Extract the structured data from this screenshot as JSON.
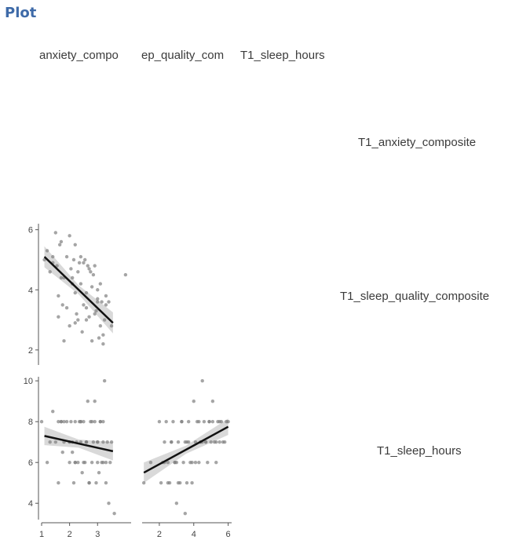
{
  "header": {
    "title": "Plot"
  },
  "matrix": {
    "column_labels": [
      "T1_anxiety_composite",
      "T1_sleep_quality_composite",
      "T1_sleep_hours"
    ],
    "column_labels_visible": [
      "anxiety_compo",
      "ep_quality_com",
      "T1_sleep_hours"
    ],
    "row_labels": [
      "T1_anxiety_composite",
      "T1_sleep_quality_composite",
      "T1_sleep_hours"
    ]
  },
  "colors": {
    "point": "#7f7f7f",
    "line": "#111111",
    "band": "#d0d0d0",
    "axis": "#555555"
  },
  "chart_data": [
    {
      "type": "scatter",
      "panel": "T1_sleep_quality_composite vs T1_anxiety_composite",
      "xlabel": "",
      "ylabel": "",
      "xlim": [
        1,
        4.2
      ],
      "ylim": [
        1.5,
        6.2
      ],
      "y_ticks": [
        2,
        4,
        6
      ],
      "x": [
        1.1,
        1.2,
        1.3,
        1.4,
        1.5,
        1.55,
        1.6,
        1.65,
        1.7,
        1.75,
        1.8,
        1.9,
        2.0,
        2.05,
        2.1,
        2.15,
        2.2,
        2.25,
        2.3,
        2.35,
        2.4,
        2.45,
        2.5,
        2.55,
        2.6,
        2.65,
        2.7,
        2.75,
        2.8,
        2.85,
        2.9,
        2.95,
        3.0,
        3.05,
        3.1,
        3.15,
        3.2,
        3.25,
        3.3,
        3.4,
        3.5,
        1.6,
        1.8,
        2.0,
        2.2,
        2.4,
        2.6,
        2.8,
        3.0,
        3.2,
        1.7,
        1.9,
        2.1,
        2.3,
        2.5,
        2.7,
        2.9,
        3.1,
        3.3,
        4.0,
        1.4,
        2.2,
        2.6,
        3.0
      ],
      "y": [
        5.0,
        5.3,
        4.6,
        5.1,
        5.9,
        4.8,
        3.8,
        5.5,
        5.6,
        3.5,
        4.4,
        5.1,
        5.8,
        4.7,
        4.2,
        5.0,
        5.5,
        3.2,
        4.6,
        4.9,
        5.1,
        2.6,
        4.9,
        5.0,
        3.4,
        4.8,
        3.1,
        4.6,
        2.3,
        4.5,
        4.8,
        3.3,
        3.7,
        2.4,
        4.2,
        3.6,
        2.2,
        3.0,
        3.8,
        3.6,
        2.8,
        3.1,
        2.3,
        2.8,
        3.9,
        4.2,
        3.0,
        4.1,
        3.6,
        2.5,
        4.4,
        3.4,
        4.4,
        3.0,
        3.5,
        4.7,
        3.2,
        2.8,
        3.5,
        4.5,
        4.9,
        2.9,
        3.9,
        4.0
      ],
      "fit": {
        "x": [
          1.1,
          3.55
        ],
        "y": [
          5.1,
          2.9
        ]
      },
      "band_halfwidth": [
        0.35,
        0.15,
        0.35
      ]
    },
    {
      "type": "scatter",
      "panel": "T1_sleep_hours vs T1_anxiety_composite",
      "xlabel": "",
      "ylabel": "",
      "xlim": [
        1,
        4.2
      ],
      "ylim": [
        3.2,
        10.2
      ],
      "x_ticks": [
        1,
        2,
        3
      ],
      "y_ticks": [
        4,
        6,
        8,
        10
      ],
      "x": [
        1.0,
        1.2,
        1.3,
        1.4,
        1.5,
        1.6,
        1.7,
        1.75,
        1.8,
        1.9,
        2.0,
        2.0,
        2.05,
        2.1,
        2.15,
        2.2,
        2.25,
        2.3,
        2.35,
        2.4,
        2.45,
        2.5,
        2.55,
        2.6,
        2.65,
        2.7,
        2.75,
        2.8,
        2.85,
        2.9,
        2.95,
        3.0,
        3.05,
        3.1,
        3.15,
        3.2,
        3.25,
        3.3,
        3.35,
        3.4,
        3.45,
        3.5,
        1.6,
        1.8,
        2.0,
        2.2,
        2.4,
        2.6,
        2.8,
        3.0,
        3.2,
        1.7,
        2.1,
        2.5,
        2.9,
        3.3,
        2.7,
        3.1,
        3.6,
        3.2,
        2.2,
        2.6,
        2.4,
        3.0
      ],
      "y": [
        8,
        6,
        7,
        8.5,
        7,
        5,
        8,
        6.5,
        7,
        8,
        6,
        7,
        8,
        6.5,
        5,
        8,
        7,
        6,
        8,
        7,
        5.5,
        8,
        6,
        7,
        9,
        5,
        8,
        6,
        7,
        8,
        5,
        7,
        5.5,
        8,
        6,
        7,
        10,
        5,
        7,
        4,
        6,
        7,
        8,
        8,
        7,
        6,
        8,
        7,
        8,
        7,
        6,
        8,
        7,
        6,
        9,
        6,
        5,
        8,
        3.5,
        8,
        6,
        7,
        8,
        6
      ],
      "fit": {
        "x": [
          1.1,
          3.55
        ],
        "y": [
          7.3,
          6.55
        ]
      },
      "band_halfwidth": [
        0.45,
        0.2,
        0.45
      ]
    },
    {
      "type": "scatter",
      "panel": "T1_sleep_hours vs T1_sleep_quality_composite",
      "xlabel": "",
      "ylabel": "",
      "xlim": [
        1,
        6.2
      ],
      "ylim": [
        3.2,
        10.2
      ],
      "x_ticks": [
        2,
        4,
        6
      ],
      "x": [
        1.1,
        1.5,
        2.0,
        2.1,
        2.2,
        2.3,
        2.4,
        2.5,
        2.6,
        2.7,
        2.8,
        2.9,
        3.0,
        3.1,
        3.2,
        3.3,
        3.4,
        3.5,
        3.6,
        3.7,
        3.8,
        3.9,
        4.0,
        4.1,
        4.2,
        4.3,
        4.4,
        4.5,
        4.6,
        4.7,
        4.8,
        4.9,
        5.0,
        5.1,
        5.2,
        5.3,
        5.4,
        5.5,
        5.6,
        5.7,
        5.8,
        5.9,
        6.0,
        2.3,
        2.7,
        3.1,
        3.5,
        3.9,
        4.3,
        4.7,
        5.1,
        5.5,
        2.5,
        2.9,
        3.3,
        3.7,
        4.1,
        4.5,
        4.9,
        5.3,
        3.0,
        3.6,
        4.4
      ],
      "y": [
        5.0,
        6.0,
        8,
        5,
        6,
        7,
        8,
        6,
        5,
        7,
        8,
        6,
        4,
        7,
        5,
        8,
        6,
        3.5,
        7,
        8,
        6,
        5,
        9,
        7,
        8,
        6,
        7,
        10,
        8,
        7,
        6,
        8,
        7,
        8,
        7,
        6,
        8,
        7,
        8,
        7,
        7,
        8,
        8,
        6,
        7,
        5,
        7,
        6,
        8,
        7,
        9,
        8,
        5,
        6,
        8,
        7,
        6,
        7,
        8,
        7,
        6,
        5,
        7
      ],
      "fit": {
        "x": [
          1.1,
          6.0
        ],
        "y": [
          5.5,
          7.75
        ]
      },
      "band_halfwidth": [
        0.5,
        0.2,
        0.4
      ]
    }
  ]
}
